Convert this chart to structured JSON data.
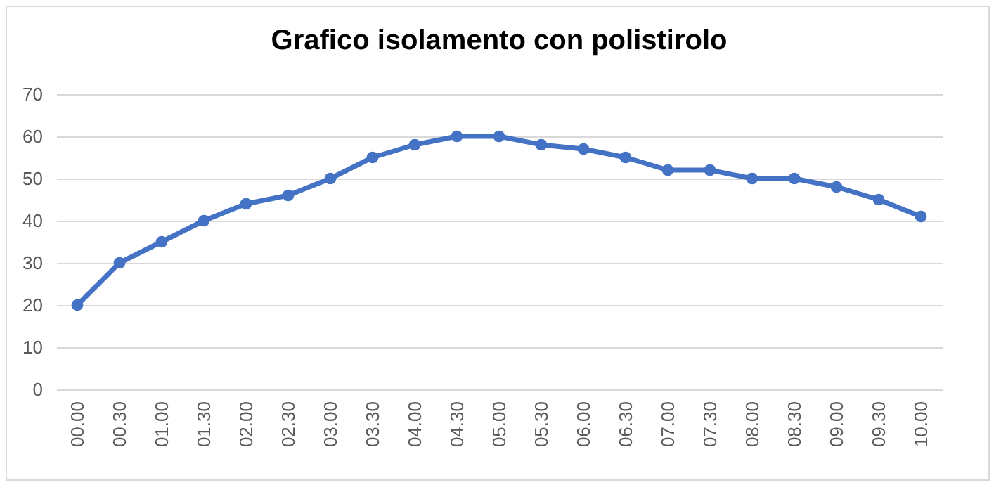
{
  "chart_data": {
    "type": "line",
    "title": "Grafico isolamento con polistirolo",
    "categories": [
      "00.00",
      "00.30",
      "01.00",
      "01.30",
      "02.00",
      "02.30",
      "03.00",
      "03.30",
      "04.00",
      "04.30",
      "05.00",
      "05.30",
      "06.00",
      "06.30",
      "07.00",
      "07.30",
      "08.00",
      "08.30",
      "09.00",
      "09.30",
      "10.00"
    ],
    "series": [
      {
        "color": "#4472c4",
        "values": [
          20,
          30,
          35,
          40,
          44,
          46,
          50,
          55,
          58,
          60,
          60,
          58,
          57,
          55,
          52,
          52,
          50,
          50,
          48,
          45,
          41
        ]
      }
    ],
    "ylim": [
      0,
      70
    ],
    "yticks": [
      0,
      10,
      20,
      30,
      40,
      50,
      60,
      70
    ],
    "grid": "y",
    "marker": "circle",
    "line_style": "solid"
  }
}
